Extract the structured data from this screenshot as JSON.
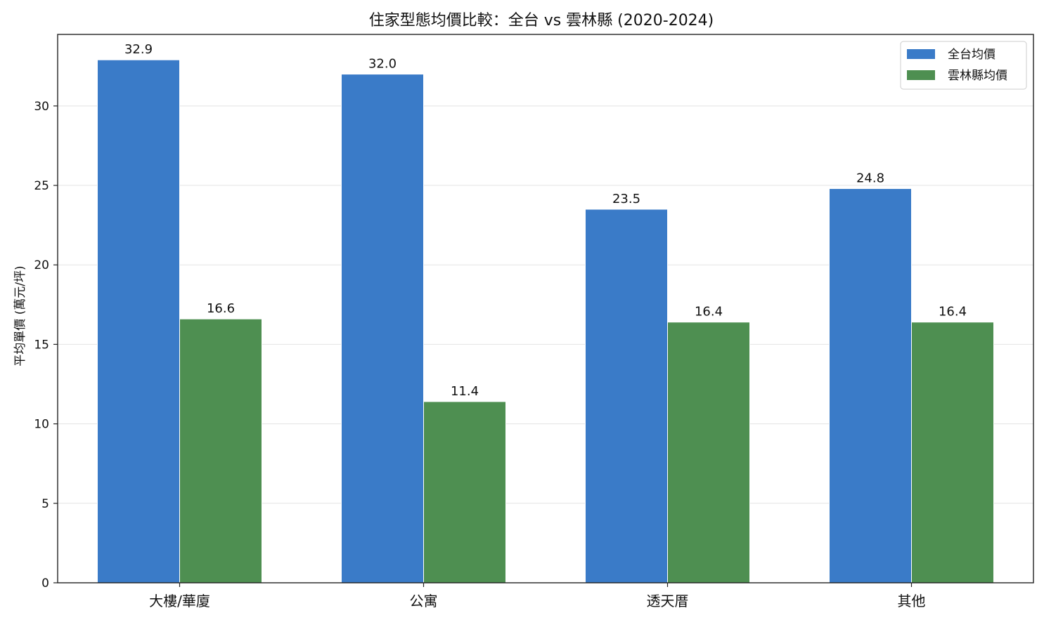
{
  "chart_data": {
    "type": "bar",
    "title": "住家型態均價比較：全台 vs 雲林縣 (2020-2024)",
    "xlabel": "",
    "ylabel": "平均單價 (萬元/坪)",
    "categories": [
      "大樓/華廈",
      "公寓",
      "透天厝",
      "其他"
    ],
    "series": [
      {
        "name": "全台均價",
        "values": [
          32.9,
          32.0,
          23.5,
          24.8
        ],
        "color": "#3a7bc8"
      },
      {
        "name": "雲林縣均價",
        "values": [
          16.6,
          11.4,
          16.4,
          16.4
        ],
        "color": "#4e8f51"
      }
    ],
    "ylim": [
      0,
      34.5
    ],
    "yticks": [
      0,
      5,
      10,
      15,
      20,
      25,
      30
    ],
    "grid": true,
    "legend": "top-right"
  }
}
